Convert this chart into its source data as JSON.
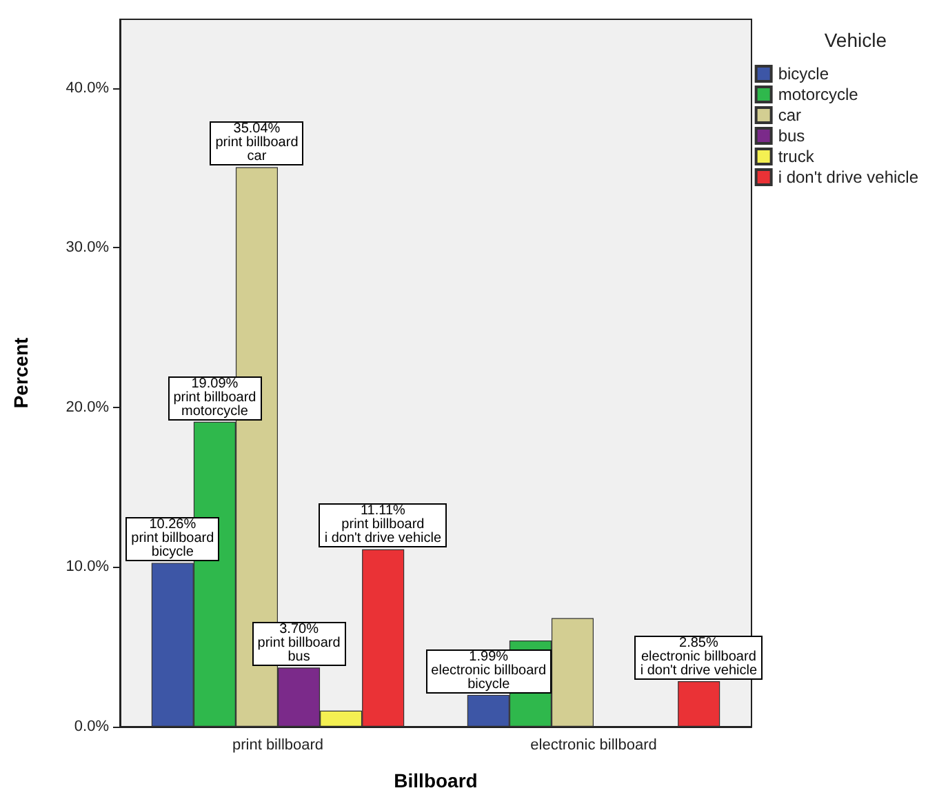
{
  "chart_data": {
    "type": "bar",
    "xlabel": "Billboard",
    "ylabel": "Percent",
    "legend_title": "Vehicle",
    "categories": [
      "print billboard",
      "electronic billboard"
    ],
    "series": [
      {
        "name": "bicycle",
        "color": "#3d56a6",
        "values": [
          10.26,
          1.99
        ]
      },
      {
        "name": "motorcycle",
        "color": "#2fb84c",
        "values": [
          19.09,
          5.4
        ]
      },
      {
        "name": "car",
        "color": "#d3ce92",
        "values": [
          35.04,
          6.8
        ]
      },
      {
        "name": "bus",
        "color": "#7b2a8a",
        "values": [
          3.7,
          null
        ]
      },
      {
        "name": "truck",
        "color": "#f4f052",
        "values": [
          1.0,
          null
        ]
      },
      {
        "name": "i don't drive vehicle",
        "color": "#ea3236",
        "values": [
          11.11,
          2.85
        ]
      }
    ],
    "ylim": [
      0,
      44.3
    ],
    "yticks": [
      {
        "value": 0,
        "label": "0.0%"
      },
      {
        "value": 10,
        "label": "10.0%"
      },
      {
        "value": 20,
        "label": "20.0%"
      },
      {
        "value": 30,
        "label": "30.0%"
      },
      {
        "value": 40,
        "label": "40.0%"
      }
    ],
    "annotations": [
      {
        "text": "35.04%\nprint billboard\ncar",
        "y": 35.04
      },
      {
        "text": "19.09%\nprint billboard\nmotorcycle",
        "y": 19.09
      },
      {
        "text": "10.26%\nprint billboard\nbicycle",
        "y": 10.26
      },
      {
        "text": "11.11%\nprint billboard\ni don't drive vehicle",
        "y": 11.11
      },
      {
        "text": "3.70%\nprint billboard\nbus",
        "y": 3.7
      },
      {
        "text": "1.99%\nelectronic billboard\nbicycle",
        "y": 1.99
      },
      {
        "text": "2.85%\nelectronic billboard\ni don't drive vehicle",
        "y": 2.85
      }
    ],
    "grid": false,
    "legend": "top right"
  }
}
